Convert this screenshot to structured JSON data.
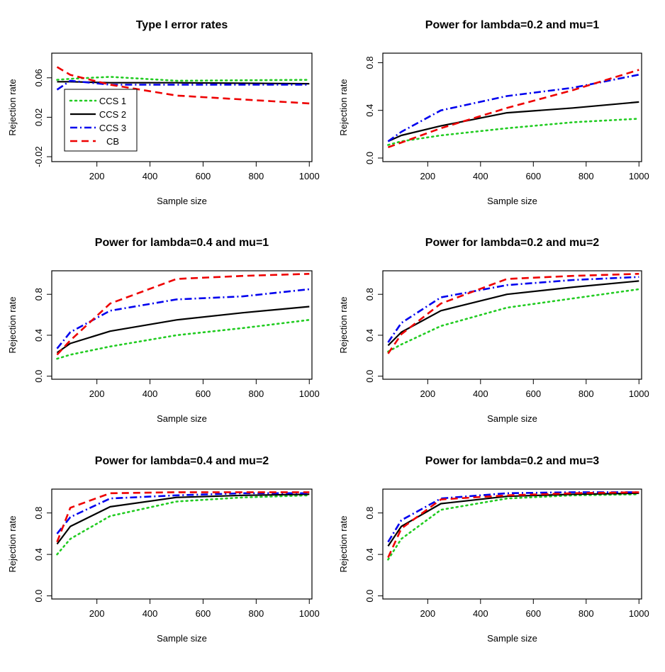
{
  "chart_data": [
    {
      "type": "line",
      "title": "Type I error rates",
      "xlabel": "Sample size",
      "ylabel": "Rejection rate",
      "xlim": [
        30,
        1010
      ],
      "ylim": [
        -0.025,
        0.085
      ],
      "xticks": [
        200,
        400,
        600,
        800,
        1000
      ],
      "yticks": [
        -0.02,
        0.02,
        0.06
      ],
      "ytick_labels": [
        "-0.02",
        "0.02",
        "0.06"
      ],
      "legend": "bottom-left",
      "series": [
        {
          "name": "CCS 1",
          "x": [
            50,
            100,
            250,
            500,
            1000
          ],
          "y": [
            0.058,
            0.059,
            0.061,
            0.057,
            0.058
          ]
        },
        {
          "name": "CCS 2",
          "x": [
            50,
            100,
            250,
            500,
            1000
          ],
          "y": [
            0.056,
            0.056,
            0.055,
            0.055,
            0.054
          ]
        },
        {
          "name": "CCS 3",
          "x": [
            50,
            100,
            250,
            500,
            1000
          ],
          "y": [
            0.048,
            0.057,
            0.053,
            0.053,
            0.053
          ]
        },
        {
          "name": "CB",
          "x": [
            50,
            100,
            250,
            500,
            1000
          ],
          "y": [
            0.071,
            0.063,
            0.053,
            0.042,
            0.034
          ]
        }
      ]
    },
    {
      "type": "line",
      "title": "Power for lambda=0.2 and mu=1",
      "xlabel": "Sample size",
      "ylabel": "Rejection rate",
      "xlim": [
        30,
        1010
      ],
      "ylim": [
        -0.03,
        0.88
      ],
      "xticks": [
        200,
        400,
        600,
        800,
        1000
      ],
      "yticks": [
        0,
        0.4,
        0.8
      ],
      "ytick_labels": [
        "0.0",
        "0.4",
        "0.8"
      ],
      "series": [
        {
          "name": "CCS 1",
          "x": [
            50,
            100,
            250,
            500,
            750,
            1000
          ],
          "y": [
            0.11,
            0.14,
            0.19,
            0.25,
            0.3,
            0.33
          ]
        },
        {
          "name": "CCS 2",
          "x": [
            50,
            100,
            250,
            500,
            750,
            1000
          ],
          "y": [
            0.14,
            0.19,
            0.27,
            0.38,
            0.42,
            0.47
          ]
        },
        {
          "name": "CCS 3",
          "x": [
            50,
            100,
            250,
            500,
            750,
            1000
          ],
          "y": [
            0.14,
            0.22,
            0.4,
            0.52,
            0.59,
            0.7
          ]
        },
        {
          "name": "CB",
          "x": [
            50,
            100,
            250,
            500,
            750,
            1000
          ],
          "y": [
            0.09,
            0.13,
            0.25,
            0.42,
            0.57,
            0.74
          ]
        }
      ]
    },
    {
      "type": "line",
      "title": "Power for lambda=0.4 and mu=1",
      "xlabel": "Sample size",
      "ylabel": "Rejection rate",
      "xlim": [
        30,
        1010
      ],
      "ylim": [
        -0.03,
        1.03
      ],
      "xticks": [
        200,
        400,
        600,
        800,
        1000
      ],
      "yticks": [
        0,
        0.4,
        0.8
      ],
      "ytick_labels": [
        "0.0",
        "0.4",
        "0.8"
      ],
      "series": [
        {
          "name": "CCS 1",
          "x": [
            50,
            100,
            250,
            500,
            750,
            1000
          ],
          "y": [
            0.17,
            0.21,
            0.29,
            0.4,
            0.47,
            0.55
          ]
        },
        {
          "name": "CCS 2",
          "x": [
            50,
            100,
            250,
            500,
            750,
            1000
          ],
          "y": [
            0.23,
            0.32,
            0.44,
            0.55,
            0.62,
            0.68
          ]
        },
        {
          "name": "CCS 3",
          "x": [
            50,
            100,
            250,
            500,
            750,
            1000
          ],
          "y": [
            0.27,
            0.43,
            0.64,
            0.75,
            0.78,
            0.85
          ]
        },
        {
          "name": "CB",
          "x": [
            50,
            100,
            250,
            500,
            750,
            1000
          ],
          "y": [
            0.21,
            0.35,
            0.71,
            0.95,
            0.98,
            1.0
          ]
        }
      ]
    },
    {
      "type": "line",
      "title": "Power for lambda=0.2 and mu=2",
      "xlabel": "Sample size",
      "ylabel": "Rejection rate",
      "xlim": [
        30,
        1010
      ],
      "ylim": [
        -0.03,
        1.03
      ],
      "xticks": [
        200,
        400,
        600,
        800,
        1000
      ],
      "yticks": [
        0,
        0.4,
        0.8
      ],
      "ytick_labels": [
        "0.0",
        "0.4",
        "0.8"
      ],
      "series": [
        {
          "name": "CCS 1",
          "x": [
            50,
            100,
            250,
            500,
            750,
            1000
          ],
          "y": [
            0.24,
            0.31,
            0.49,
            0.67,
            0.76,
            0.85
          ]
        },
        {
          "name": "CCS 2",
          "x": [
            50,
            100,
            250,
            500,
            750,
            1000
          ],
          "y": [
            0.3,
            0.43,
            0.64,
            0.8,
            0.87,
            0.93
          ]
        },
        {
          "name": "CCS 3",
          "x": [
            50,
            100,
            250,
            500,
            750,
            1000
          ],
          "y": [
            0.33,
            0.52,
            0.77,
            0.89,
            0.94,
            0.97
          ]
        },
        {
          "name": "CB",
          "x": [
            50,
            100,
            250,
            500,
            750,
            1000
          ],
          "y": [
            0.22,
            0.41,
            0.71,
            0.95,
            0.98,
            1.0
          ]
        }
      ]
    },
    {
      "type": "line",
      "title": "Power for lambda=0.4 and mu=2",
      "xlabel": "Sample size",
      "ylabel": "Rejection rate",
      "xlim": [
        30,
        1010
      ],
      "ylim": [
        -0.03,
        1.03
      ],
      "xticks": [
        200,
        400,
        600,
        800,
        1000
      ],
      "yticks": [
        0,
        0.4,
        0.8
      ],
      "ytick_labels": [
        "0.0",
        "0.4",
        "0.8"
      ],
      "series": [
        {
          "name": "CCS 1",
          "x": [
            50,
            100,
            250,
            500,
            750,
            1000
          ],
          "y": [
            0.4,
            0.55,
            0.77,
            0.91,
            0.95,
            0.97
          ]
        },
        {
          "name": "CCS 2",
          "x": [
            50,
            100,
            250,
            500,
            750,
            1000
          ],
          "y": [
            0.5,
            0.67,
            0.86,
            0.95,
            0.97,
            0.98
          ]
        },
        {
          "name": "CCS 3",
          "x": [
            50,
            100,
            250,
            500,
            750,
            1000
          ],
          "y": [
            0.6,
            0.76,
            0.94,
            0.97,
            0.99,
            0.99
          ]
        },
        {
          "name": "CB",
          "x": [
            50,
            100,
            250,
            500,
            750,
            1000
          ],
          "y": [
            0.52,
            0.85,
            0.99,
            1.0,
            1.0,
            1.0
          ]
        }
      ]
    },
    {
      "type": "line",
      "title": "Power for lambda=0.2 and mu=3",
      "xlabel": "Sample size",
      "ylabel": "Rejection rate",
      "xlim": [
        30,
        1010
      ],
      "ylim": [
        -0.03,
        1.03
      ],
      "xticks": [
        200,
        400,
        600,
        800,
        1000
      ],
      "yticks": [
        0,
        0.4,
        0.8
      ],
      "ytick_labels": [
        "0.0",
        "0.4",
        "0.8"
      ],
      "series": [
        {
          "name": "CCS 1",
          "x": [
            50,
            100,
            250,
            500,
            750,
            1000
          ],
          "y": [
            0.35,
            0.55,
            0.83,
            0.94,
            0.97,
            0.98
          ]
        },
        {
          "name": "CCS 2",
          "x": [
            50,
            100,
            250,
            500,
            750,
            1000
          ],
          "y": [
            0.48,
            0.67,
            0.89,
            0.96,
            0.98,
            0.99
          ]
        },
        {
          "name": "CCS 3",
          "x": [
            50,
            100,
            250,
            500,
            750,
            1000
          ],
          "y": [
            0.52,
            0.73,
            0.94,
            0.99,
            1.0,
            1.0
          ]
        },
        {
          "name": "CB",
          "x": [
            50,
            100,
            250,
            500,
            750,
            1000
          ],
          "y": [
            0.37,
            0.65,
            0.93,
            0.97,
            0.99,
            1.0
          ]
        }
      ]
    }
  ],
  "styles": {
    "CCS 1": {
      "color": "#22cc22",
      "dash": "2 5",
      "linecap": "round",
      "width": 2.6
    },
    "CCS 2": {
      "color": "#000000",
      "dash": "",
      "linecap": "butt",
      "width": 2.2
    },
    "CCS 3": {
      "color": "#0000ee",
      "dash": "10 4 2 4",
      "linecap": "butt",
      "width": 2.6
    },
    "CB": {
      "color": "#ee0000",
      "dash": "10 6",
      "linecap": "butt",
      "width": 2.6
    }
  }
}
